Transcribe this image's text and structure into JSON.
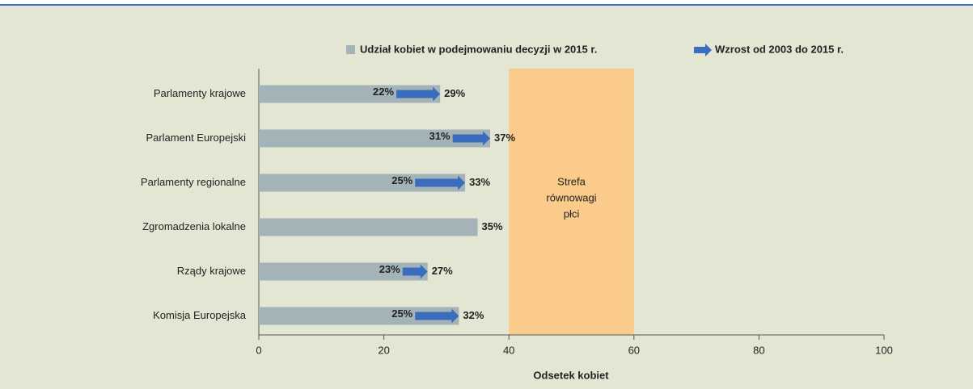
{
  "chart_data": {
    "type": "bar-arrow",
    "categories": [
      "Parlamenty krajowe",
      "Parlament Europejski",
      "Parlamenty regionalne",
      "Zgromadzenia lokalne",
      "Rządy krajowe",
      "Komisja Europejska"
    ],
    "series": [
      {
        "name": "Udział kobiet w podejmowaniu decyzji w 2015 r.",
        "color": "#a3b3b8",
        "values": [
          29,
          37,
          33,
          35,
          27,
          32
        ],
        "value_labels": [
          "29%",
          "37%",
          "33%",
          "35%",
          "27%",
          "32%"
        ]
      },
      {
        "name": "Wzrost od 2003 do 2015 r.",
        "color": "#3b6dbf",
        "values": [
          22,
          31,
          25,
          null,
          23,
          25
        ],
        "value_labels": [
          "22%",
          "31%",
          "25%",
          null,
          "23%",
          "25%"
        ]
      }
    ],
    "zone": {
      "range": [
        40,
        60
      ],
      "color": "#fbcb8c",
      "label_lines": [
        "Strefa",
        "równowagi",
        "płci"
      ]
    },
    "xlabel": "Odsetek kobiet",
    "xlim": [
      0,
      100
    ],
    "xticks": [
      0,
      20,
      40,
      60,
      80,
      100
    ]
  }
}
